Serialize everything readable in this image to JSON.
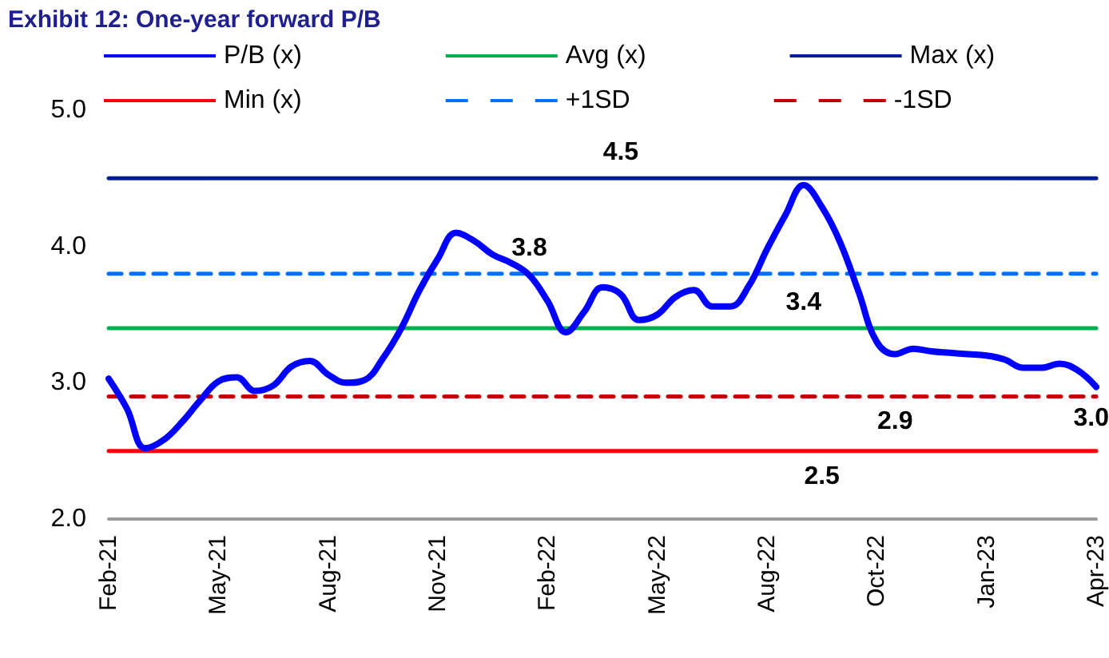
{
  "chart_data": {
    "type": "line",
    "title": "Exhibit 12: One-year forward P/B",
    "categories": [
      "Feb-21",
      null,
      null,
      null,
      null,
      null,
      "May-21",
      null,
      null,
      null,
      null,
      null,
      "Aug-21",
      null,
      null,
      null,
      null,
      null,
      "Nov-21",
      null,
      null,
      null,
      null,
      null,
      "Feb-22",
      null,
      null,
      null,
      null,
      null,
      "May-22",
      null,
      null,
      null,
      null,
      null,
      "Aug-22",
      null,
      null,
      null,
      null,
      null,
      "Oct-22",
      null,
      null,
      null,
      null,
      null,
      "Jan-23",
      null,
      null,
      null,
      null,
      null,
      "Apr-23"
    ],
    "series": [
      {
        "name": "P/B (x)",
        "color": "#0000ff",
        "line_style": "solid",
        "values": [
          3.03,
          2.81,
          2.52,
          2.58,
          2.71,
          2.87,
          3.01,
          3.04,
          2.94,
          2.98,
          3.12,
          3.16,
          3.06,
          3.0,
          3.02,
          3.18,
          3.4,
          3.68,
          3.91,
          4.1,
          4.04,
          3.94,
          3.88,
          3.79,
          3.6,
          3.37,
          3.52,
          3.7,
          3.65,
          3.46,
          3.5,
          3.63,
          3.68,
          3.56,
          3.56,
          3.71,
          3.98,
          4.23,
          4.45,
          4.29,
          4.03,
          3.67,
          3.3,
          3.21,
          3.25,
          3.23,
          3.22,
          3.21,
          3.2,
          3.17,
          3.11,
          3.11,
          3.14,
          3.09,
          2.97
        ],
        "value_labels": [
          null,
          null,
          null,
          null,
          null,
          null,
          null,
          null,
          null,
          null,
          null,
          null,
          null,
          null,
          null,
          null,
          null,
          null,
          null,
          null,
          null,
          null,
          null,
          null,
          null,
          null,
          null,
          null,
          null,
          null,
          null,
          null,
          null,
          null,
          null,
          null,
          null,
          null,
          null,
          null,
          null,
          null,
          null,
          null,
          null,
          null,
          null,
          null,
          null,
          null,
          null,
          null,
          null,
          null,
          "3.0"
        ]
      },
      {
        "name": "Avg (x)",
        "color": "#00b050",
        "line_style": "solid",
        "values": [
          3.4,
          3.4,
          3.4,
          3.4,
          3.4,
          3.4,
          3.4,
          3.4,
          3.4,
          3.4,
          3.4,
          3.4,
          3.4,
          3.4,
          3.4,
          3.4,
          3.4,
          3.4,
          3.4,
          3.4,
          3.4,
          3.4,
          3.4,
          3.4,
          3.4,
          3.4,
          3.4,
          3.4,
          3.4,
          3.4,
          3.4,
          3.4,
          3.4,
          3.4,
          3.4,
          3.4,
          3.4,
          3.4,
          3.4,
          3.4,
          3.4,
          3.4,
          3.4,
          3.4,
          3.4,
          3.4,
          3.4,
          3.4,
          3.4,
          3.4,
          3.4,
          3.4,
          3.4,
          3.4,
          3.4
        ],
        "value_labels": [
          null,
          null,
          null,
          null,
          null,
          null,
          null,
          null,
          null,
          null,
          null,
          null,
          null,
          null,
          null,
          null,
          null,
          null,
          null,
          null,
          null,
          null,
          null,
          null,
          null,
          null,
          null,
          null,
          null,
          null,
          null,
          null,
          null,
          null,
          null,
          null,
          null,
          null,
          "3.4",
          null,
          null,
          null,
          null,
          null,
          null,
          null,
          null,
          null,
          null,
          null,
          null,
          null,
          null,
          null,
          null
        ]
      },
      {
        "name": "Max (x)",
        "color": "#002090",
        "line_style": "solid",
        "values": [
          4.5,
          4.5,
          4.5,
          4.5,
          4.5,
          4.5,
          4.5,
          4.5,
          4.5,
          4.5,
          4.5,
          4.5,
          4.5,
          4.5,
          4.5,
          4.5,
          4.5,
          4.5,
          4.5,
          4.5,
          4.5,
          4.5,
          4.5,
          4.5,
          4.5,
          4.5,
          4.5,
          4.5,
          4.5,
          4.5,
          4.5,
          4.5,
          4.5,
          4.5,
          4.5,
          4.5,
          4.5,
          4.5,
          4.5,
          4.5,
          4.5,
          4.5,
          4.5,
          4.5,
          4.5,
          4.5,
          4.5,
          4.5,
          4.5,
          4.5,
          4.5,
          4.5,
          4.5,
          4.5,
          4.5
        ],
        "value_labels": [
          null,
          null,
          null,
          null,
          null,
          null,
          null,
          null,
          null,
          null,
          null,
          null,
          null,
          null,
          null,
          null,
          null,
          null,
          null,
          null,
          null,
          null,
          null,
          null,
          null,
          null,
          null,
          null,
          "4.5",
          null,
          null,
          null,
          null,
          null,
          null,
          null,
          null,
          null,
          null,
          null,
          null,
          null,
          null,
          null,
          null,
          null,
          null,
          null,
          null,
          null,
          null,
          null,
          null,
          null,
          null
        ]
      },
      {
        "name": "Min (x)",
        "color": "#ff0000",
        "line_style": "solid",
        "values": [
          2.5,
          2.5,
          2.5,
          2.5,
          2.5,
          2.5,
          2.5,
          2.5,
          2.5,
          2.5,
          2.5,
          2.5,
          2.5,
          2.5,
          2.5,
          2.5,
          2.5,
          2.5,
          2.5,
          2.5,
          2.5,
          2.5,
          2.5,
          2.5,
          2.5,
          2.5,
          2.5,
          2.5,
          2.5,
          2.5,
          2.5,
          2.5,
          2.5,
          2.5,
          2.5,
          2.5,
          2.5,
          2.5,
          2.5,
          2.5,
          2.5,
          2.5,
          2.5,
          2.5,
          2.5,
          2.5,
          2.5,
          2.5,
          2.5,
          2.5,
          2.5,
          2.5,
          2.5,
          2.5,
          2.5
        ],
        "value_labels": [
          null,
          null,
          null,
          null,
          null,
          null,
          null,
          null,
          null,
          null,
          null,
          null,
          null,
          null,
          null,
          null,
          null,
          null,
          null,
          null,
          null,
          null,
          null,
          null,
          null,
          null,
          null,
          null,
          null,
          null,
          null,
          null,
          null,
          null,
          null,
          null,
          null,
          null,
          null,
          "2.5",
          null,
          null,
          null,
          null,
          null,
          null,
          null,
          null,
          null,
          null,
          null,
          null,
          null,
          null,
          null
        ]
      },
      {
        "name": "+1SD",
        "color": "#0070ff",
        "line_style": "dashed",
        "values": [
          3.8,
          3.8,
          3.8,
          3.8,
          3.8,
          3.8,
          3.8,
          3.8,
          3.8,
          3.8,
          3.8,
          3.8,
          3.8,
          3.8,
          3.8,
          3.8,
          3.8,
          3.8,
          3.8,
          3.8,
          3.8,
          3.8,
          3.8,
          3.8,
          3.8,
          3.8,
          3.8,
          3.8,
          3.8,
          3.8,
          3.8,
          3.8,
          3.8,
          3.8,
          3.8,
          3.8,
          3.8,
          3.8,
          3.8,
          3.8,
          3.8,
          3.8,
          3.8,
          3.8,
          3.8,
          3.8,
          3.8,
          3.8,
          3.8,
          3.8,
          3.8,
          3.8,
          3.8,
          3.8,
          3.8
        ],
        "value_labels": [
          null,
          null,
          null,
          null,
          null,
          null,
          null,
          null,
          null,
          null,
          null,
          null,
          null,
          null,
          null,
          null,
          null,
          null,
          null,
          null,
          null,
          null,
          null,
          "3.8",
          null,
          null,
          null,
          null,
          null,
          null,
          null,
          null,
          null,
          null,
          null,
          null,
          null,
          null,
          null,
          null,
          null,
          null,
          null,
          null,
          null,
          null,
          null,
          null,
          null,
          null,
          null,
          null,
          null,
          null,
          null
        ]
      },
      {
        "name": "-1SD",
        "color": "#c00000",
        "line_style": "dashed",
        "values": [
          2.9,
          2.9,
          2.9,
          2.9,
          2.9,
          2.9,
          2.9,
          2.9,
          2.9,
          2.9,
          2.9,
          2.9,
          2.9,
          2.9,
          2.9,
          2.9,
          2.9,
          2.9,
          2.9,
          2.9,
          2.9,
          2.9,
          2.9,
          2.9,
          2.9,
          2.9,
          2.9,
          2.9,
          2.9,
          2.9,
          2.9,
          2.9,
          2.9,
          2.9,
          2.9,
          2.9,
          2.9,
          2.9,
          2.9,
          2.9,
          2.9,
          2.9,
          2.9,
          2.9,
          2.9,
          2.9,
          2.9,
          2.9,
          2.9,
          2.9,
          2.9,
          2.9,
          2.9,
          2.9,
          2.9
        ],
        "value_labels": [
          null,
          null,
          null,
          null,
          null,
          null,
          null,
          null,
          null,
          null,
          null,
          null,
          null,
          null,
          null,
          null,
          null,
          null,
          null,
          null,
          null,
          null,
          null,
          null,
          null,
          null,
          null,
          null,
          null,
          null,
          null,
          null,
          null,
          null,
          null,
          null,
          null,
          null,
          null,
          null,
          null,
          null,
          null,
          "2.9",
          null,
          null,
          null,
          null,
          null,
          null,
          null,
          null,
          null,
          null,
          null
        ]
      }
    ],
    "ylim": [
      2,
      5
    ],
    "yticks": [
      {
        "value": 2,
        "label": "2.0"
      },
      {
        "value": 3,
        "label": "3.0"
      },
      {
        "value": 4,
        "label": "4.0"
      },
      {
        "value": 5,
        "label": "5.0"
      }
    ],
    "grid": false,
    "legend": "top",
    "marker": "none"
  }
}
